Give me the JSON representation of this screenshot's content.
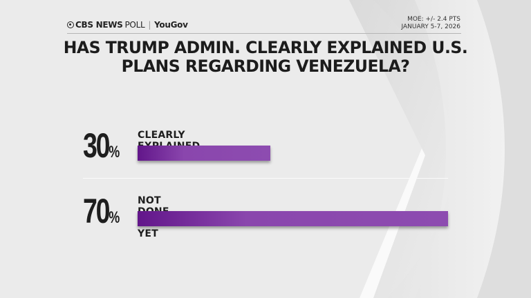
{
  "header": {
    "brand": "CBS NEWS",
    "brand_suffix": "POLL",
    "partner": "YouGov",
    "moe": "MOE: +/- 2.4 PTS",
    "dates": "JANUARY 5-7, 2026"
  },
  "colors": {
    "bar": "#8a46ad",
    "bar_dark": "#62168a",
    "background": "#ebebeb"
  },
  "chart_data": {
    "type": "bar",
    "orientation": "horizontal",
    "title": "HAS TRUMP ADMIN. CLEARLY EXPLAINED U.S. PLANS REGARDING VENEZUELA?",
    "categories": [
      "CLEARLY EXPLAINED",
      "NOT DONE THAT YET"
    ],
    "values": [
      30,
      70
    ],
    "value_labels": [
      "30",
      "70"
    ],
    "unit": "%",
    "grid": false
  }
}
